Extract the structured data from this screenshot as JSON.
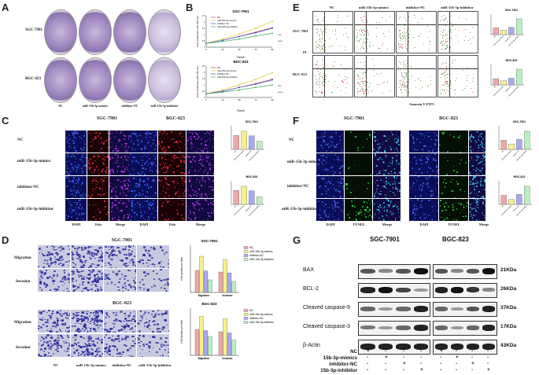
{
  "panels": {
    "A": "A",
    "B": "B",
    "C": "C",
    "D": "D",
    "E": "E",
    "F": "F",
    "G": "G"
  },
  "cell_lines": [
    "SGC-7901",
    "BGC-823"
  ],
  "groups": [
    "NC",
    "miR-15b-3p-mimics",
    "inhibitor-NC",
    "miR-15b-3p-inhibitor"
  ],
  "panel_a": {
    "row_labels": [
      "SGC-7901",
      "BGC-823"
    ],
    "col_labels": [
      "NC",
      "miR-15b-3p-mimics",
      "inhibitor-NC",
      "miR-15b-3p-inhibitor"
    ]
  },
  "panel_b": {
    "titles": [
      "SGC-7901",
      "BGC-823"
    ],
    "xlabel": "Time/h",
    "ylabel": "Cell proliferation (OD 450 nm)",
    "legend": [
      "NC",
      "miR-15b-3p-mimics",
      "inhibitor-NC",
      "miR-15b-3p-inhibitor"
    ],
    "sig": [
      "***",
      "***"
    ],
    "sig2": [
      "****",
      "****"
    ]
  },
  "panel_c": {
    "row_labels": [
      "NC",
      "miR-15b-3p-mimics",
      "inhibitor-NC",
      "miR-15b-3p-inhibitor"
    ],
    "col_headers": [
      "SGC-7901",
      "BGC-823"
    ],
    "stain_labels": [
      "DAPI",
      "Edu",
      "Merge"
    ],
    "chart_titles": [
      "SGC-7901",
      "BGC-823"
    ]
  },
  "panel_d": {
    "headers": [
      "SGC-7901",
      "BGC-823"
    ],
    "row_labels": [
      "Migration",
      "Invasion",
      "Migration",
      "Invasion"
    ],
    "col_labels": [
      "NC",
      "miR-15b-3p-mimics",
      "inhibitor-NC",
      "miR-15b-3p-inhibitor"
    ],
    "chart_titles": [
      "SGC-7901",
      "BGC-823"
    ],
    "ylabel": "Cell number per field",
    "xcats": [
      "Migration",
      "Invasion"
    ],
    "legend": [
      "NC",
      "miR-15b-3p-mimics",
      "inhibitor-NC",
      "miR-15b-3p-inhibitor"
    ]
  },
  "panel_e": {
    "col_labels": [
      "NC",
      "miR-15b-3p-mimics",
      "inhibitor-NC",
      "miR-15b-3p-inhibitor"
    ],
    "row_labels": [
      "SGC-7901",
      "BGC-823"
    ],
    "xlabel": "Annexin V-FITC",
    "ylabel": "PI",
    "chart_titles": [
      "SGC-7901",
      "BGC-823"
    ]
  },
  "panel_f": {
    "col_headers": [
      "SGC-7901",
      "BGC-823"
    ],
    "row_labels": [
      "NC",
      "miR-15b-3p-mimics",
      "inhibitor-NC",
      "miR-15b-3p-inhibitor"
    ],
    "stain_labels": [
      "DAPI",
      "TUNEL",
      "Merge"
    ],
    "chart_titles": [
      "SGC-7901",
      "BGC-823"
    ]
  },
  "panel_g": {
    "headers": [
      "SGC-7901",
      "BGC-823"
    ],
    "proteins": [
      "BAX",
      "BCL-2",
      "Cleaved caspase-9",
      "Cleaved caspase-3",
      "β-Actin"
    ],
    "kda": [
      "21KDa",
      "26KDa",
      "37KDa",
      "17KDa",
      "43KDa"
    ],
    "treatments": [
      "NC",
      "15b-3p-mimics",
      "inhibitor-NC",
      "15b-3p-inhibitor"
    ],
    "signs": [
      [
        "+",
        "-",
        "-",
        "-",
        "+",
        "-",
        "-",
        "-"
      ],
      [
        "-",
        "+",
        "-",
        "-",
        "-",
        "+",
        "-",
        "-"
      ],
      [
        "-",
        "-",
        "+",
        "-",
        "-",
        "-",
        "+",
        "-"
      ],
      [
        "-",
        "-",
        "-",
        "+",
        "-",
        "-",
        "-",
        "+"
      ]
    ]
  },
  "colors": {
    "nc": "#f2a6a6",
    "mimics": "#f7f08a",
    "inhibitor_nc": "#a9a9f0",
    "inhibitor": "#b9efc2"
  },
  "chart_data": [
    {
      "type": "line",
      "title": "SGC-7901",
      "x": [
        0,
        24,
        48,
        72,
        96
      ],
      "series": [
        {
          "name": "NC",
          "values": [
            0.3,
            0.55,
            0.85,
            1.2,
            1.55
          ]
        },
        {
          "name": "miR-15b-3p-mimics",
          "values": [
            0.3,
            0.65,
            1.05,
            1.5,
            2.05
          ]
        },
        {
          "name": "inhibitor-NC",
          "values": [
            0.3,
            0.55,
            0.85,
            1.15,
            1.5
          ]
        },
        {
          "name": "miR-15b-3p-inhibitor",
          "values": [
            0.3,
            0.45,
            0.65,
            0.9,
            1.1
          ]
        }
      ],
      "xlabel": "Time/h",
      "ylabel": "Cell proliferation (OD 450 nm)",
      "ylim": [
        0,
        2.5
      ]
    },
    {
      "type": "line",
      "title": "BGC-823",
      "x": [
        0,
        24,
        48,
        72,
        96
      ],
      "series": [
        {
          "name": "NC",
          "values": [
            0.3,
            0.5,
            0.8,
            1.1,
            1.45
          ]
        },
        {
          "name": "miR-15b-3p-mimics",
          "values": [
            0.3,
            0.6,
            1.0,
            1.45,
            1.95
          ]
        },
        {
          "name": "inhibitor-NC",
          "values": [
            0.3,
            0.5,
            0.8,
            1.05,
            1.4
          ]
        },
        {
          "name": "miR-15b-3p-inhibitor",
          "values": [
            0.3,
            0.42,
            0.6,
            0.8,
            1.0
          ]
        }
      ],
      "xlabel": "Time/h",
      "ylabel": "Cell proliferation (OD 450 nm)",
      "ylim": [
        0,
        2.5
      ]
    },
    {
      "type": "bar",
      "title": "SGC-7901",
      "categories": [
        "NC",
        "miR-15b-3p-mimics",
        "inhibitor-NC",
        "miR-15b-3p-inhibitor"
      ],
      "values": [
        42,
        55,
        41,
        25
      ]
    },
    {
      "type": "bar",
      "title": "BGC-823",
      "categories": [
        "NC",
        "miR-15b-3p-mimics",
        "inhibitor-NC",
        "miR-15b-3p-inhibitor"
      ],
      "values": [
        40,
        52,
        39,
        22
      ]
    },
    {
      "type": "bar",
      "title": "SGC-7901",
      "categories": [
        "Migration",
        "Invasion"
      ],
      "series": [
        {
          "name": "NC",
          "values": [
            70,
            65
          ]
        },
        {
          "name": "miR-15b-3p-mimics",
          "values": [
            115,
            105
          ]
        },
        {
          "name": "inhibitor-NC",
          "values": [
            68,
            62
          ]
        },
        {
          "name": "miR-15b-3p-inhibitor",
          "values": [
            40,
            35
          ]
        }
      ],
      "ylabel": "Cell number per field",
      "ylim": [
        0,
        150
      ]
    },
    {
      "type": "bar",
      "title": "BGC-823",
      "categories": [
        "Migration",
        "Invasion"
      ],
      "series": [
        {
          "name": "NC",
          "values": [
            110,
            100
          ]
        },
        {
          "name": "miR-15b-3p-mimics",
          "values": [
            165,
            155
          ]
        },
        {
          "name": "inhibitor-NC",
          "values": [
            105,
            95
          ]
        },
        {
          "name": "miR-15b-3p-inhibitor",
          "values": [
            80,
            65
          ]
        }
      ],
      "ylabel": "Cell number per field",
      "ylim": [
        0,
        200
      ]
    },
    {
      "type": "bar",
      "title": "SGC-7901",
      "categories": [
        "NC",
        "miR-15b-3p-mimics",
        "inhibitor-NC",
        "miR-15b-3p-inhibitor"
      ],
      "values": [
        6,
        4,
        6.5,
        14
      ]
    },
    {
      "type": "bar",
      "title": "BGC-823",
      "categories": [
        "NC",
        "miR-15b-3p-mimics",
        "inhibitor-NC",
        "miR-15b-3p-inhibitor"
      ],
      "values": [
        5,
        3.5,
        5.5,
        13
      ]
    },
    {
      "type": "bar",
      "title": "SGC-7901",
      "categories": [
        "NC",
        "miR-15b-3p-mimics",
        "inhibitor-NC",
        "miR-15b-3p-inhibitor"
      ],
      "values": [
        10,
        6,
        11,
        20
      ]
    },
    {
      "type": "bar",
      "title": "BGC-823",
      "categories": [
        "NC",
        "miR-15b-3p-mimics",
        "inhibitor-NC",
        "miR-15b-3p-inhibitor"
      ],
      "values": [
        9,
        5,
        10,
        18
      ]
    }
  ]
}
